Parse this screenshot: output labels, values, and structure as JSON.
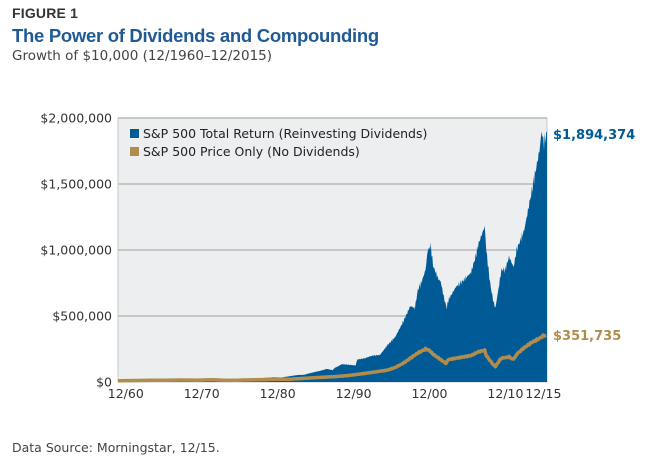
{
  "header": {
    "figure_label": "FIGURE 1",
    "title": "The Power of Dividends and Compounding",
    "subtitle": "Growth of $10,000 (12/1960–12/2015)"
  },
  "footer": {
    "source": "Data Source: Morningstar, 12/15."
  },
  "colors": {
    "total_return": "#005a96",
    "price_only": "#b08d4c",
    "plot_bg": "#eceef0",
    "grid": "#b8b8b8",
    "title": "#1f5a95"
  },
  "chart_data": {
    "type": "area",
    "title": "The Power of Dividends and Compounding",
    "subtitle": "Growth of $10,000 (12/1960–12/2015)",
    "xlabel": "",
    "ylabel": "",
    "xlim": [
      1959.5,
      2016
    ],
    "ylim": [
      0,
      2000000
    ],
    "grid": true,
    "legend_position": "top-left",
    "x_ticks": [
      {
        "value": 1960,
        "label": "12/60"
      },
      {
        "value": 1970,
        "label": "12/70"
      },
      {
        "value": 1980,
        "label": "12/80"
      },
      {
        "value": 1990,
        "label": "12/90"
      },
      {
        "value": 2000,
        "label": "12/00"
      },
      {
        "value": 2010,
        "label": "12/10"
      },
      {
        "value": 2015,
        "label": "12/15"
      }
    ],
    "y_ticks": [
      {
        "value": 0,
        "label": "$0"
      },
      {
        "value": 500000,
        "label": "$500,000"
      },
      {
        "value": 1000000,
        "label": "$1,000,000"
      },
      {
        "value": 1500000,
        "label": "$1,500,000"
      },
      {
        "value": 2000000,
        "label": "$2,000,000"
      }
    ],
    "series": [
      {
        "name": "S&P 500 Total Return (Reinvesting Dividends)",
        "kind": "area",
        "end_label": "$1,894,374",
        "x": [
          1960,
          1962,
          1964,
          1966,
          1968,
          1970,
          1972,
          1973,
          1974,
          1976,
          1978,
          1980,
          1981,
          1982,
          1983,
          1984,
          1985,
          1986,
          1987,
          1987.8,
          1988,
          1989,
          1990,
          1990.8,
          1991,
          1992,
          1993,
          1994,
          1995,
          1996,
          1997,
          1998,
          1998.6,
          1999,
          1999.5,
          2000,
          2000.3,
          2000.7,
          2001,
          2001.7,
          2002,
          2002.5,
          2002.8,
          2003,
          2004,
          2005,
          2006,
          2006.6,
          2007,
          2007.8,
          2008,
          2008.5,
          2008.9,
          2009.2,
          2009.6,
          2010,
          2010.5,
          2011,
          2011.6,
          2012,
          2013,
          2013.5,
          2014,
          2014.5,
          2015,
          2015.3,
          2015.6,
          2015.9
        ],
        "values": [
          10000,
          11500,
          15000,
          15500,
          20000,
          20000,
          27000,
          22000,
          18000,
          26000,
          27000,
          36000,
          34000,
          43000,
          52000,
          55000,
          70000,
          83000,
          99000,
          90000,
          105000,
          135000,
          130000,
          125000,
          170000,
          180000,
          200000,
          205000,
          280000,
          340000,
          450000,
          575000,
          560000,
          700000,
          760000,
          850000,
          1000000,
          1030000,
          880000,
          780000,
          760000,
          620000,
          560000,
          620000,
          720000,
          770000,
          830000,
          950000,
          1050000,
          1180000,
          1000000,
          750000,
          620000,
          560000,
          700000,
          850000,
          850000,
          950000,
          870000,
          1000000,
          1150000,
          1300000,
          1450000,
          1600000,
          1750000,
          1900000,
          1800000,
          1894374
        ]
      },
      {
        "name": "S&P 500 Price Only (No Dividends)",
        "kind": "line",
        "end_label": "$351,735",
        "x": [
          1960,
          1964,
          1968,
          1970,
          1972,
          1974,
          1976,
          1980,
          1982,
          1985,
          1987,
          1988,
          1990,
          1992,
          1995,
          1996,
          1997,
          1998,
          1999,
          2000,
          2000.5,
          2001,
          2002,
          2002.7,
          2003,
          2004,
          2006,
          2007,
          2007.8,
          2008,
          2008.8,
          2009.2,
          2009.8,
          2010,
          2011,
          2011.6,
          2012,
          2013,
          2014,
          2015,
          2015.5,
          2015.9
        ],
        "values": [
          10000,
          13000,
          15000,
          14000,
          17000,
          12000,
          15000,
          20000,
          21000,
          31000,
          38000,
          40000,
          50000,
          65000,
          90000,
          110000,
          140000,
          180000,
          220000,
          250000,
          240000,
          210000,
          170000,
          140000,
          170000,
          180000,
          200000,
          230000,
          240000,
          200000,
          140000,
          115000,
          170000,
          180000,
          190000,
          170000,
          210000,
          260000,
          300000,
          330000,
          350000,
          351735
        ]
      }
    ]
  }
}
